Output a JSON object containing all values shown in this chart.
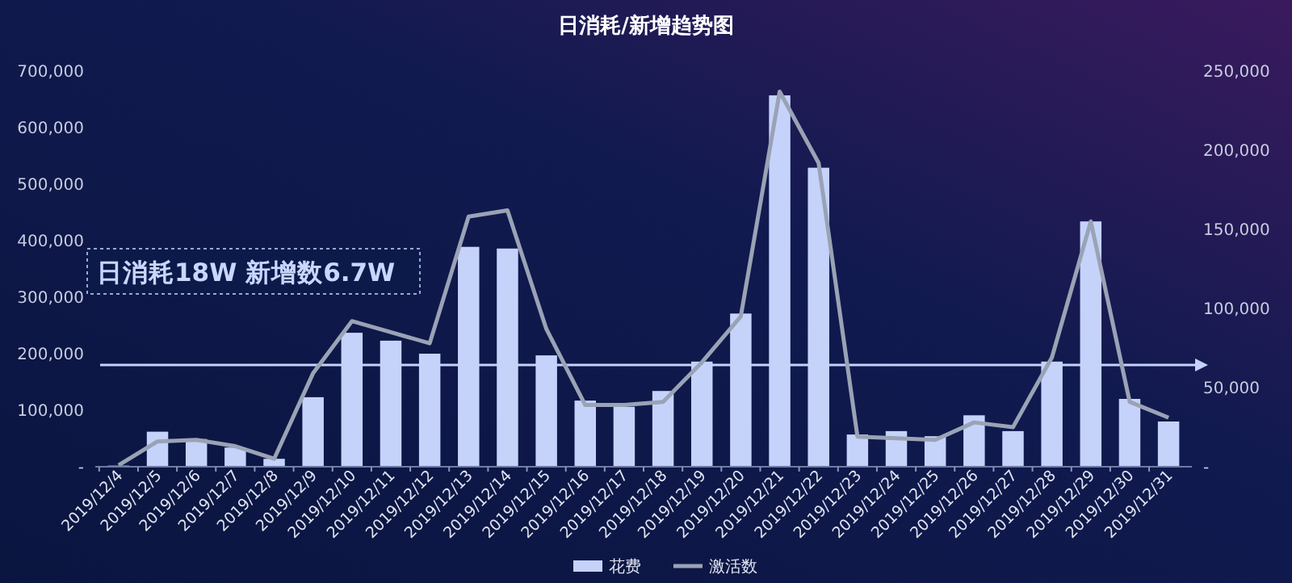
{
  "chart_data": {
    "type": "bar",
    "title": "日消耗/新增趋势图",
    "categories": [
      "2019/12/4",
      "2019/12/5",
      "2019/12/6",
      "2019/12/7",
      "2019/12/8",
      "2019/12/9",
      "2019/12/10",
      "2019/12/11",
      "2019/12/12",
      "2019/12/13",
      "2019/12/14",
      "2019/12/15",
      "2019/12/16",
      "2019/12/17",
      "2019/12/18",
      "2019/12/19",
      "2019/12/20",
      "2019/12/21",
      "2019/12/22",
      "2019/12/23",
      "2019/12/24",
      "2019/12/25",
      "2019/12/26",
      "2019/12/27",
      "2019/12/28",
      "2019/12/29",
      "2019/12/30",
      "2019/12/31"
    ],
    "series": [
      {
        "name": "花费",
        "color": "#c5d3fb",
        "values": [
          2000,
          62000,
          49000,
          34000,
          14000,
          123000,
          237000,
          223000,
          200000,
          389000,
          386000,
          197000,
          117000,
          106000,
          134000,
          186000,
          271000,
          657000,
          529000,
          57000,
          63000,
          54000,
          91000,
          63000,
          186000,
          434000,
          120000,
          80000
        ]
      },
      {
        "name": "激活数",
        "type": "line",
        "axis": "y2",
        "color": "#9aa3b5",
        "values": [
          1000,
          16000,
          17000,
          13000,
          5000,
          59000,
          92000,
          85000,
          78000,
          158000,
          162000,
          87000,
          39000,
          39000,
          41000,
          66000,
          95000,
          237000,
          192000,
          19000,
          18000,
          17000,
          28000,
          25000,
          69000,
          155000,
          41000,
          31000
        ]
      }
    ],
    "ylim": [
      0,
      700000
    ],
    "yticks": [
      {
        "value": 0,
        "label": "-"
      },
      {
        "value": 100000,
        "label": "100,000"
      },
      {
        "value": 200000,
        "label": "200,000"
      },
      {
        "value": 300000,
        "label": "300,000"
      },
      {
        "value": 400000,
        "label": "400,000"
      },
      {
        "value": 500000,
        "label": "500,000"
      },
      {
        "value": 600000,
        "label": "600,000"
      },
      {
        "value": 700000,
        "label": "700,000"
      }
    ],
    "y2lim": [
      0,
      250000
    ],
    "y2ticks": [
      {
        "value": 0,
        "label": "-"
      },
      {
        "value": 50000,
        "label": "50,000"
      },
      {
        "value": 100000,
        "label": "100,000"
      },
      {
        "value": 150000,
        "label": "150,000"
      },
      {
        "value": 200000,
        "label": "200,000"
      },
      {
        "value": 250000,
        "label": "250,000"
      }
    ],
    "ref_lines": [
      {
        "axis": "y",
        "value": 180000,
        "color": "#c5d3fb"
      }
    ],
    "annotations": [
      "日消耗18W  新增数6.7W"
    ],
    "legend": "bottom",
    "marker": "none",
    "grid": false
  }
}
